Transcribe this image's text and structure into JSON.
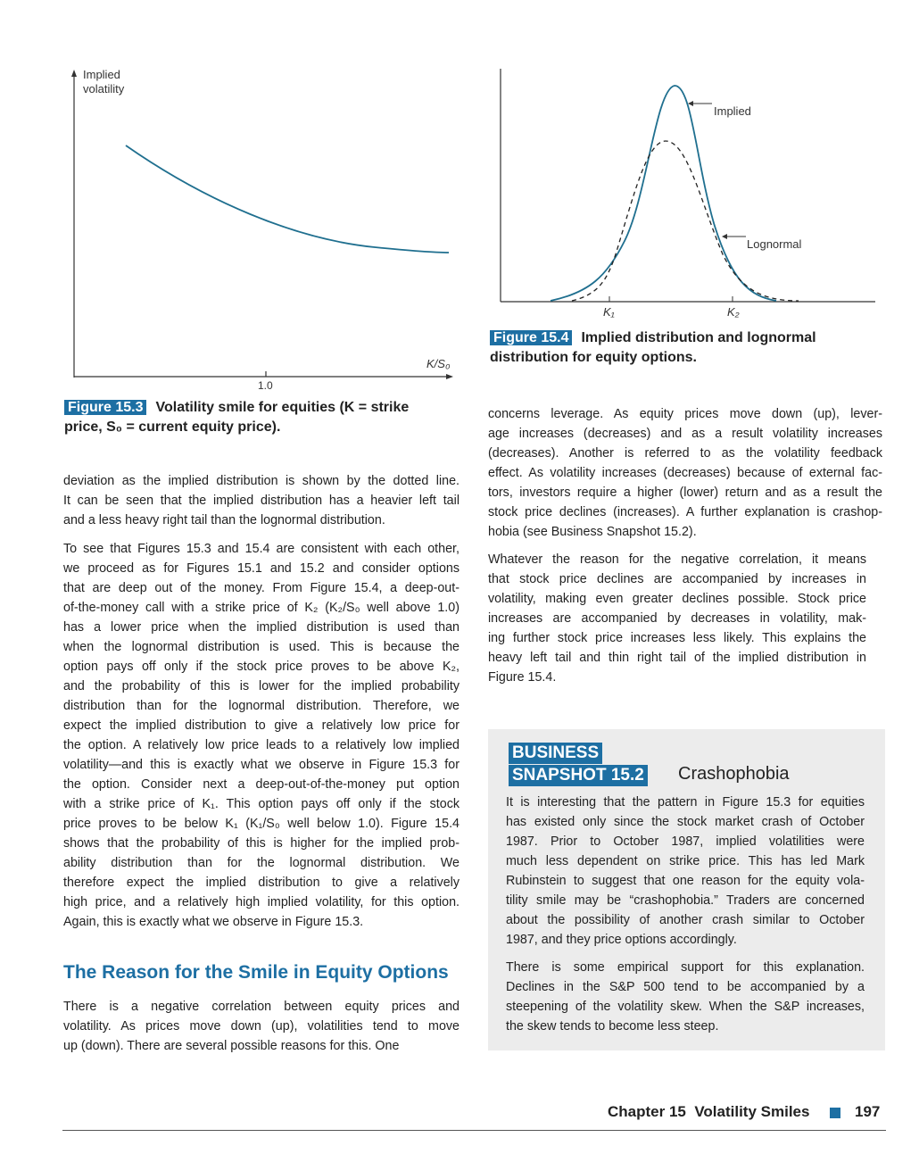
{
  "figure_15_3": {
    "y_axis_label_1": "Implied",
    "y_axis_label_2": "volatility",
    "x_axis_label": "K/S₀",
    "x_tick": "1.0",
    "caption_label": "Figure 15.3",
    "caption_text_1": "Volatility smile for equities (K = strike",
    "caption_text_2": "price, S₀ = current equity price).",
    "curve_color": "#1f6f8f"
  },
  "figure_15_4": {
    "implied_label": "Implied",
    "lognormal_label": "Lognormal",
    "k1": "K₁",
    "k2": "K₂",
    "caption_label": "Figure 15.4",
    "caption_text_1": "Implied distribution and lognormal",
    "caption_text_2": "distribution for equity options.",
    "implied_color": "#1f6f8f",
    "lognormal_color": "#222222"
  },
  "left_column": {
    "para1": [
      "deviation as the implied distribution is shown by the dotted line.",
      "It can be seen that the implied distribution has a heavier left tail",
      "and a less heavy right tail than the lognormal distribution."
    ],
    "para2": [
      "To see that Figures 15.3 and 15.4 are consistent with each other,",
      "we proceed as for Figures 15.1 and 15.2 and consider options",
      "that are deep out of the money. From Figure 15.4, a deep-out-",
      "of-the-money call with a strike price of K₂ (K₂/S₀ well above 1.0)",
      "has a lower price when the implied distribution is used than",
      "when the lognormal distribution is used. This is because the",
      "option pays off only if the stock price proves to be above K₂,",
      "and the probability of this is lower for the implied probability",
      "distribution than for the lognormal distribution. Therefore, we",
      "expect the implied distribution to give a relatively low price for",
      "the option. A relatively low price leads to a relatively low implied",
      "volatility—and this is exactly what we observe in Figure 15.3 for",
      "the option. Consider next a deep-out-of-the-money put option",
      "with a strike price of K₁. This option pays off only if the stock",
      "price proves to be below K₁ (K₁/S₀ well below 1.0). Figure 15.4",
      "shows that the probability of this is higher for the implied prob-",
      "ability distribution than for the lognormal distribution. We",
      "therefore expect the implied distribution to give a relatively",
      "high price, and a relatively high implied volatility, for this option.",
      "Again, this is exactly what we observe in Figure 15.3."
    ],
    "heading": "The Reason for the Smile in Equity Options",
    "para3": [
      "There is a negative correlation between equity prices and",
      "volatility. As prices move down (up), volatilities tend to move",
      "up (down). There are several possible reasons for this. One"
    ]
  },
  "right_column": {
    "para1": [
      "concerns leverage. As equity prices move down (up), lever-",
      "age increases (decreases) and as a result volatility increases",
      "(decreases). Another is referred to as the volatility feedback",
      "effect. As volatility increases (decreases) because of external fac-",
      "tors, investors require a higher (lower) return and as a result the",
      "stock price declines (increases). A further explanation is crashop-",
      "hobia (see Business Snapshot 15.2)."
    ],
    "para2": [
      "Whatever the reason for the negative correlation, it means",
      "that stock price declines are accompanied by increases in",
      "volatility, making even greater declines possible. Stock price",
      "increases are accompanied by decreases in volatility, mak-",
      "ing further stock price increases less likely. This explains the",
      "heavy left tail and thin right tail of the implied distribution in",
      "Figure 15.4."
    ]
  },
  "business_snapshot": {
    "tag_line_1": "BUSINESS",
    "tag_line_2": "SNAPSHOT 15.2",
    "title": "Crashophobia",
    "para1": [
      "It is interesting that the pattern in Figure 15.3 for equities",
      "has existed only since the stock market crash of October",
      "1987. Prior to October 1987, implied volatilities were",
      "much less dependent on strike price. This has led Mark",
      "Rubinstein to suggest that one reason for the equity vola-",
      "tility smile may be “crashophobia.” Traders are concerned",
      "about the possibility of another crash similar to October",
      "1987, and they price options accordingly."
    ],
    "para2": [
      "There is some empirical support for this explanation.",
      "Declines in the S&P 500 tend to be accompanied by a",
      "steepening of the volatility skew. When the S&P increases,",
      "the skew tends to become less steep."
    ],
    "background_color": "#ececec"
  },
  "footer": {
    "chapter": "Chapter 15",
    "title": "Volatility Smiles",
    "page_number": "197",
    "accent_color": "#1d6fa3"
  }
}
